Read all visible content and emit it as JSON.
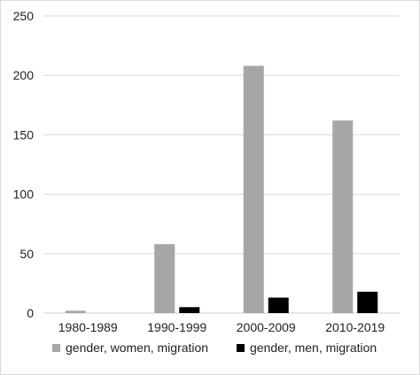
{
  "chart_data": {
    "type": "bar",
    "categories": [
      "1980-1989",
      "1990-1999",
      "2000-2009",
      "2010-2019"
    ],
    "series": [
      {
        "name": "gender, women, migration",
        "values": [
          2,
          58,
          208,
          162
        ],
        "color": "#a6a6a6"
      },
      {
        "name": "gender, men, migration",
        "values": [
          0,
          5,
          13,
          18
        ],
        "color": "#000000"
      }
    ],
    "ylim": [
      0,
      250
    ],
    "yticks": [
      0,
      50,
      100,
      150,
      200,
      250
    ],
    "grid": true,
    "legend_position": "bottom",
    "title": "",
    "xlabel": "",
    "ylabel": ""
  }
}
